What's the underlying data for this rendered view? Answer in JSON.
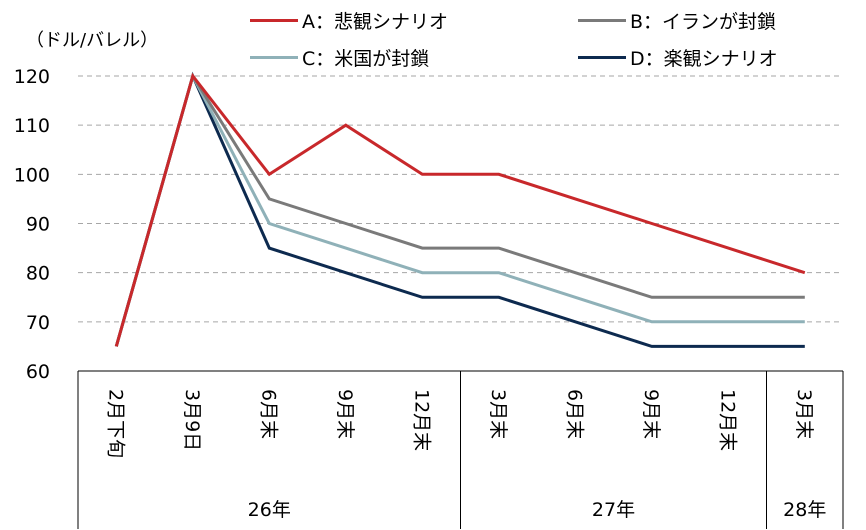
{
  "chart_data": {
    "type": "line",
    "unit_label": "（ドル/バレル）",
    "categories": [
      "2月下旬",
      "3月9日",
      "6月末",
      "9月末",
      "12月末",
      "3月末",
      "6月末",
      "9月末",
      "12月末",
      "3月末"
    ],
    "groups": [
      {
        "label": "26年",
        "from": 0,
        "to": 4
      },
      {
        "label": "27年",
        "from": 5,
        "to": 8
      },
      {
        "label": "28年",
        "from": 9,
        "to": 9
      }
    ],
    "ylim": [
      60,
      120
    ],
    "yticks": [
      60,
      70,
      80,
      90,
      100,
      110,
      120
    ],
    "grid": true,
    "legend_position": "top",
    "series": [
      {
        "name": "A：悲観シナリオ",
        "color": "#c8282b",
        "values": [
          65,
          120,
          100,
          110,
          100,
          100,
          95,
          90,
          85,
          80
        ]
      },
      {
        "name": "B：イランが封鎖",
        "color": "#7a7a7a",
        "values": [
          65,
          120,
          95,
          90,
          85,
          85,
          80,
          75,
          75,
          75
        ]
      },
      {
        "name": "C：米国が封鎖",
        "color": "#8fb1b8",
        "values": [
          65,
          120,
          90,
          85,
          80,
          80,
          75,
          70,
          70,
          70
        ]
      },
      {
        "name": "D：楽観シナリオ",
        "color": "#0d2a4f",
        "values": [
          65,
          120,
          85,
          80,
          75,
          75,
          70,
          65,
          65,
          65
        ]
      }
    ]
  }
}
